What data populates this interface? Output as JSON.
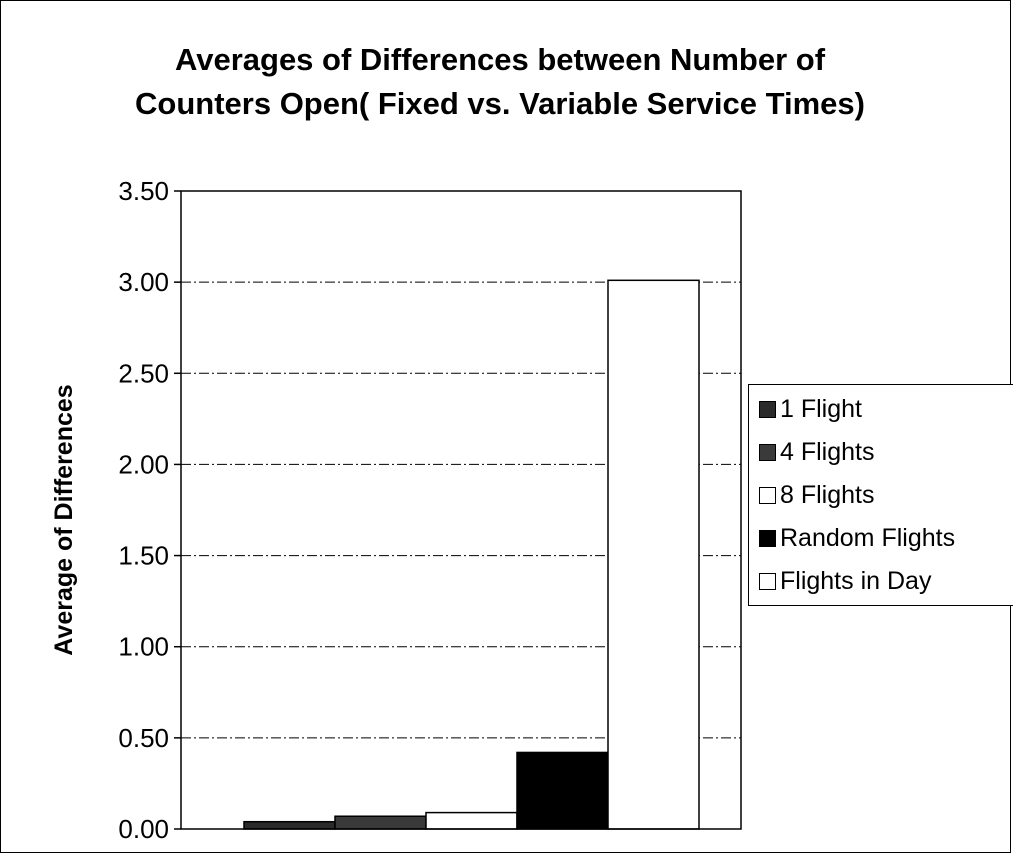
{
  "chart_data": {
    "type": "bar",
    "title": "Averages of Differences between Number of Counters Open( Fixed vs. Variable Service Times)",
    "xlabel": "",
    "ylabel": "Average of Differences",
    "ylim": [
      0,
      3.5
    ],
    "yticks": [
      "0.00",
      "0.50",
      "1.00",
      "1.50",
      "2.00",
      "2.50",
      "3.00",
      "3.50"
    ],
    "grid": true,
    "legend_position": "right",
    "categories": [
      ""
    ],
    "series": [
      {
        "name": "1 Flight",
        "values": [
          0.04
        ],
        "color": "#2b2b2b"
      },
      {
        "name": "4 Flights",
        "values": [
          0.07
        ],
        "color": "#3a3a3a"
      },
      {
        "name": "8 Flights",
        "values": [
          0.09
        ],
        "color": "#ffffff"
      },
      {
        "name": "Random Flights",
        "values": [
          0.42
        ],
        "color": "#000000"
      },
      {
        "name": "Flights in Day",
        "values": [
          3.01
        ],
        "color": "#ffffff"
      }
    ]
  }
}
